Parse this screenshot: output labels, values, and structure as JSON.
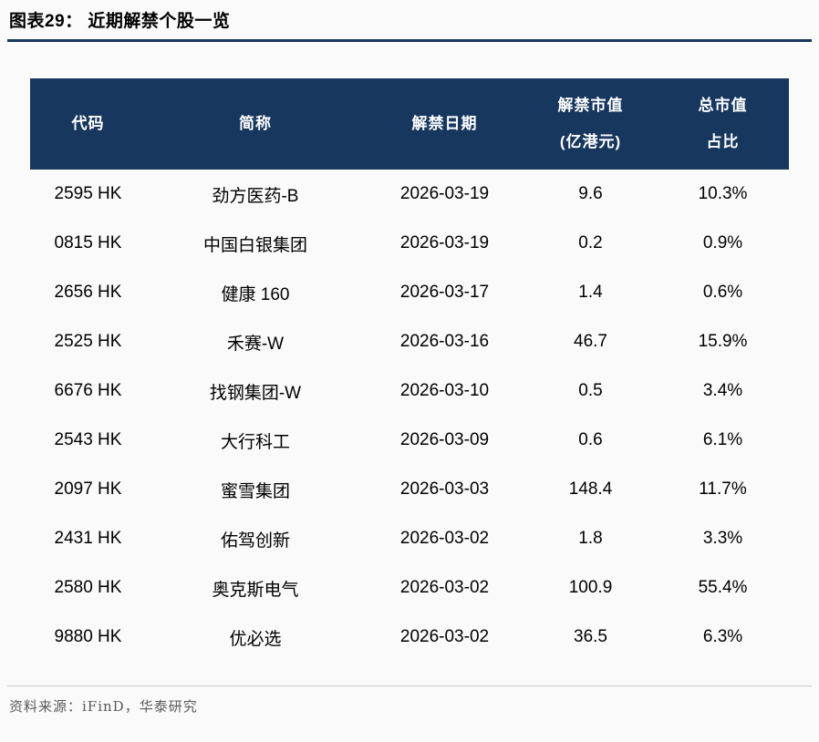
{
  "colors": {
    "navy": "#17375E",
    "divider": "#C9C9C9",
    "source_text": "#595959"
  },
  "figure": {
    "title": "图表29： 近期解禁个股一览",
    "source": "资料来源：iFinD，华泰研究"
  },
  "table": {
    "column_keys": [
      "code",
      "name",
      "unlock-date",
      "unlock-mcap",
      "mcap-pct"
    ],
    "columns": [
      {
        "line1": "代码",
        "line2": ""
      },
      {
        "line1": "简称",
        "line2": ""
      },
      {
        "line1": "解禁日期",
        "line2": ""
      },
      {
        "line1": "解禁市值",
        "line2": "(亿港元)"
      },
      {
        "line1": "总市值",
        "line2": "占比"
      }
    ],
    "rows": [
      [
        "2595 HK",
        "劲方医药-B",
        "2026-03-19",
        "9.6",
        "10.3%"
      ],
      [
        "0815 HK",
        "中国白银集团",
        "2026-03-19",
        "0.2",
        "0.9%"
      ],
      [
        "2656 HK",
        "健康 160",
        "2026-03-17",
        "1.4",
        "0.6%"
      ],
      [
        "2525 HK",
        "禾赛-W",
        "2026-03-16",
        "46.7",
        "15.9%"
      ],
      [
        "6676 HK",
        "找钢集团-W",
        "2026-03-10",
        "0.5",
        "3.4%"
      ],
      [
        "2543 HK",
        "大行科工",
        "2026-03-09",
        "0.6",
        "6.1%"
      ],
      [
        "2097 HK",
        "蜜雪集团",
        "2026-03-03",
        "148.4",
        "11.7%"
      ],
      [
        "2431 HK",
        "佑驾创新",
        "2026-03-02",
        "1.8",
        "3.3%"
      ],
      [
        "2580 HK",
        "奥克斯电气",
        "2026-03-02",
        "100.9",
        "55.4%"
      ],
      [
        "9880 HK",
        "优必选",
        "2026-03-02",
        "36.5",
        "6.3%"
      ]
    ]
  }
}
